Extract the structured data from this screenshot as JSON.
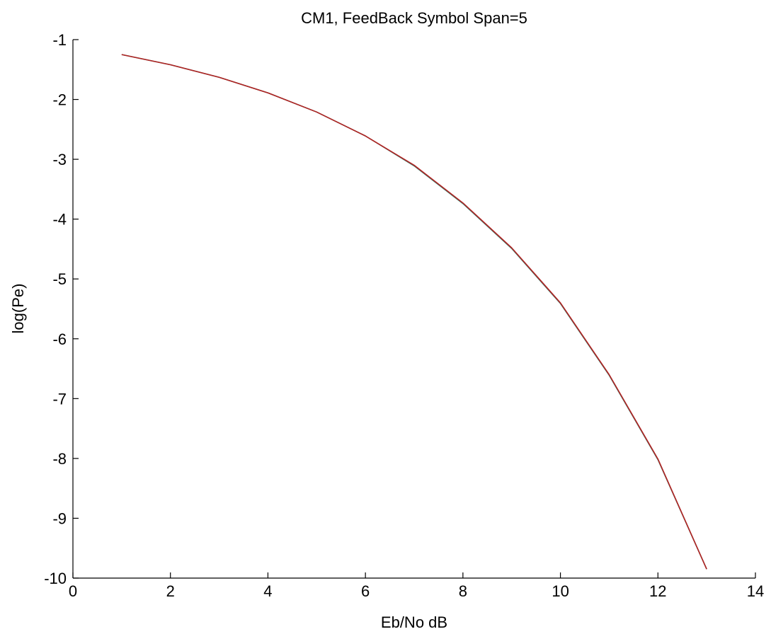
{
  "chart_data": {
    "type": "line",
    "title": "CM1, FeedBack Symbol Span=5",
    "xlabel": "Eb/No dB",
    "ylabel": "log(Pe)",
    "xlim": [
      0,
      14
    ],
    "ylim": [
      -10,
      -1
    ],
    "xticks": [
      "0",
      "2",
      "4",
      "6",
      "8",
      "10",
      "12",
      "14"
    ],
    "yticks": [
      "-1",
      "-2",
      "-3",
      "-4",
      "-5",
      "-6",
      "-7",
      "-8",
      "-9",
      "-10"
    ],
    "grid": false,
    "series": [
      {
        "color": "#2e7d6b",
        "x": [
          1,
          2,
          3,
          4,
          5,
          6,
          7,
          8,
          9,
          10,
          11,
          12,
          13
        ],
        "y": [
          -1.25,
          -1.42,
          -1.63,
          -1.89,
          -2.21,
          -2.61,
          -3.11,
          -3.74,
          -4.49,
          -5.41,
          -6.61,
          -8.02,
          -9.85
        ]
      },
      {
        "color": "#b22222",
        "x": [
          1,
          2,
          3,
          4,
          5,
          6,
          7,
          8,
          9,
          10,
          11,
          12,
          13
        ],
        "y": [
          -1.25,
          -1.42,
          -1.63,
          -1.89,
          -2.21,
          -2.61,
          -3.1,
          -3.73,
          -4.48,
          -5.4,
          -6.6,
          -8.01,
          -9.85
        ]
      }
    ]
  }
}
